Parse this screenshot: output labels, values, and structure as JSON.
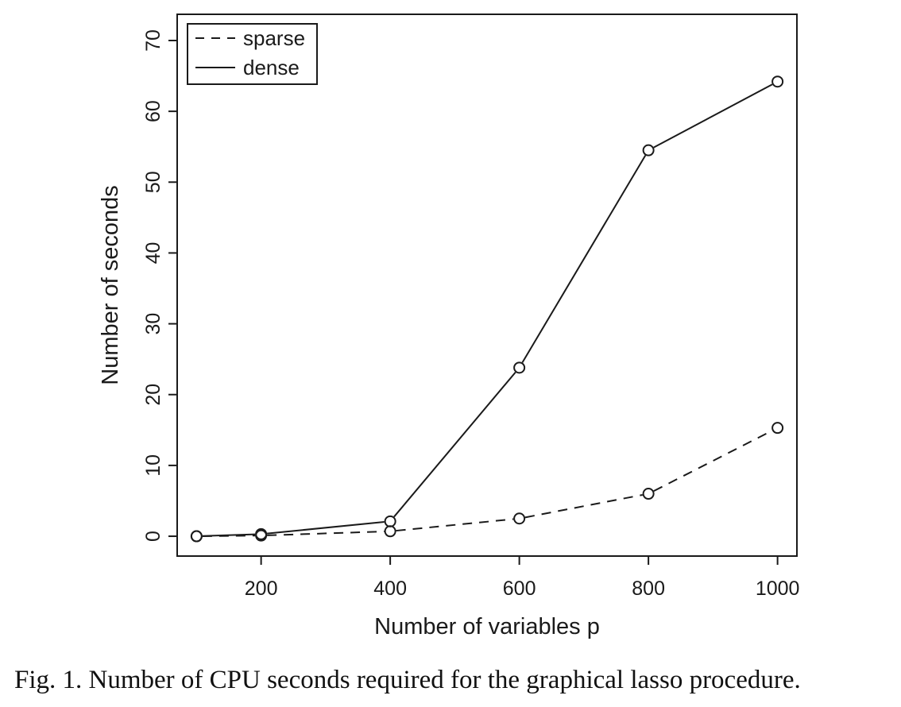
{
  "caption": "Fig. 1. Number of CPU seconds required for the graphical lasso procedure.",
  "chart_data": {
    "type": "line",
    "xlabel": "Number of variables p",
    "ylabel": "Number of seconds",
    "xlim": [
      70,
      1030
    ],
    "ylim": [
      -2.8,
      73.7
    ],
    "x_ticks": [
      200,
      400,
      600,
      800,
      1000
    ],
    "y_ticks": [
      0,
      10,
      20,
      30,
      40,
      50,
      60,
      70
    ],
    "grid": false,
    "legend_position": "top-left",
    "series": [
      {
        "name": "sparse",
        "line_style": "dashed",
        "marker": "open-circle",
        "color": "#1a1a1a",
        "x": [
          100,
          200,
          400,
          600,
          800,
          1000
        ],
        "y": [
          0.0,
          0.1,
          0.7,
          2.5,
          6.0,
          15.3
        ]
      },
      {
        "name": "dense",
        "line_style": "solid",
        "marker": "open-circle",
        "color": "#1a1a1a",
        "x": [
          100,
          200,
          400,
          600,
          800,
          1000
        ],
        "y": [
          0.0,
          0.3,
          2.1,
          23.8,
          54.5,
          64.2
        ]
      }
    ]
  }
}
